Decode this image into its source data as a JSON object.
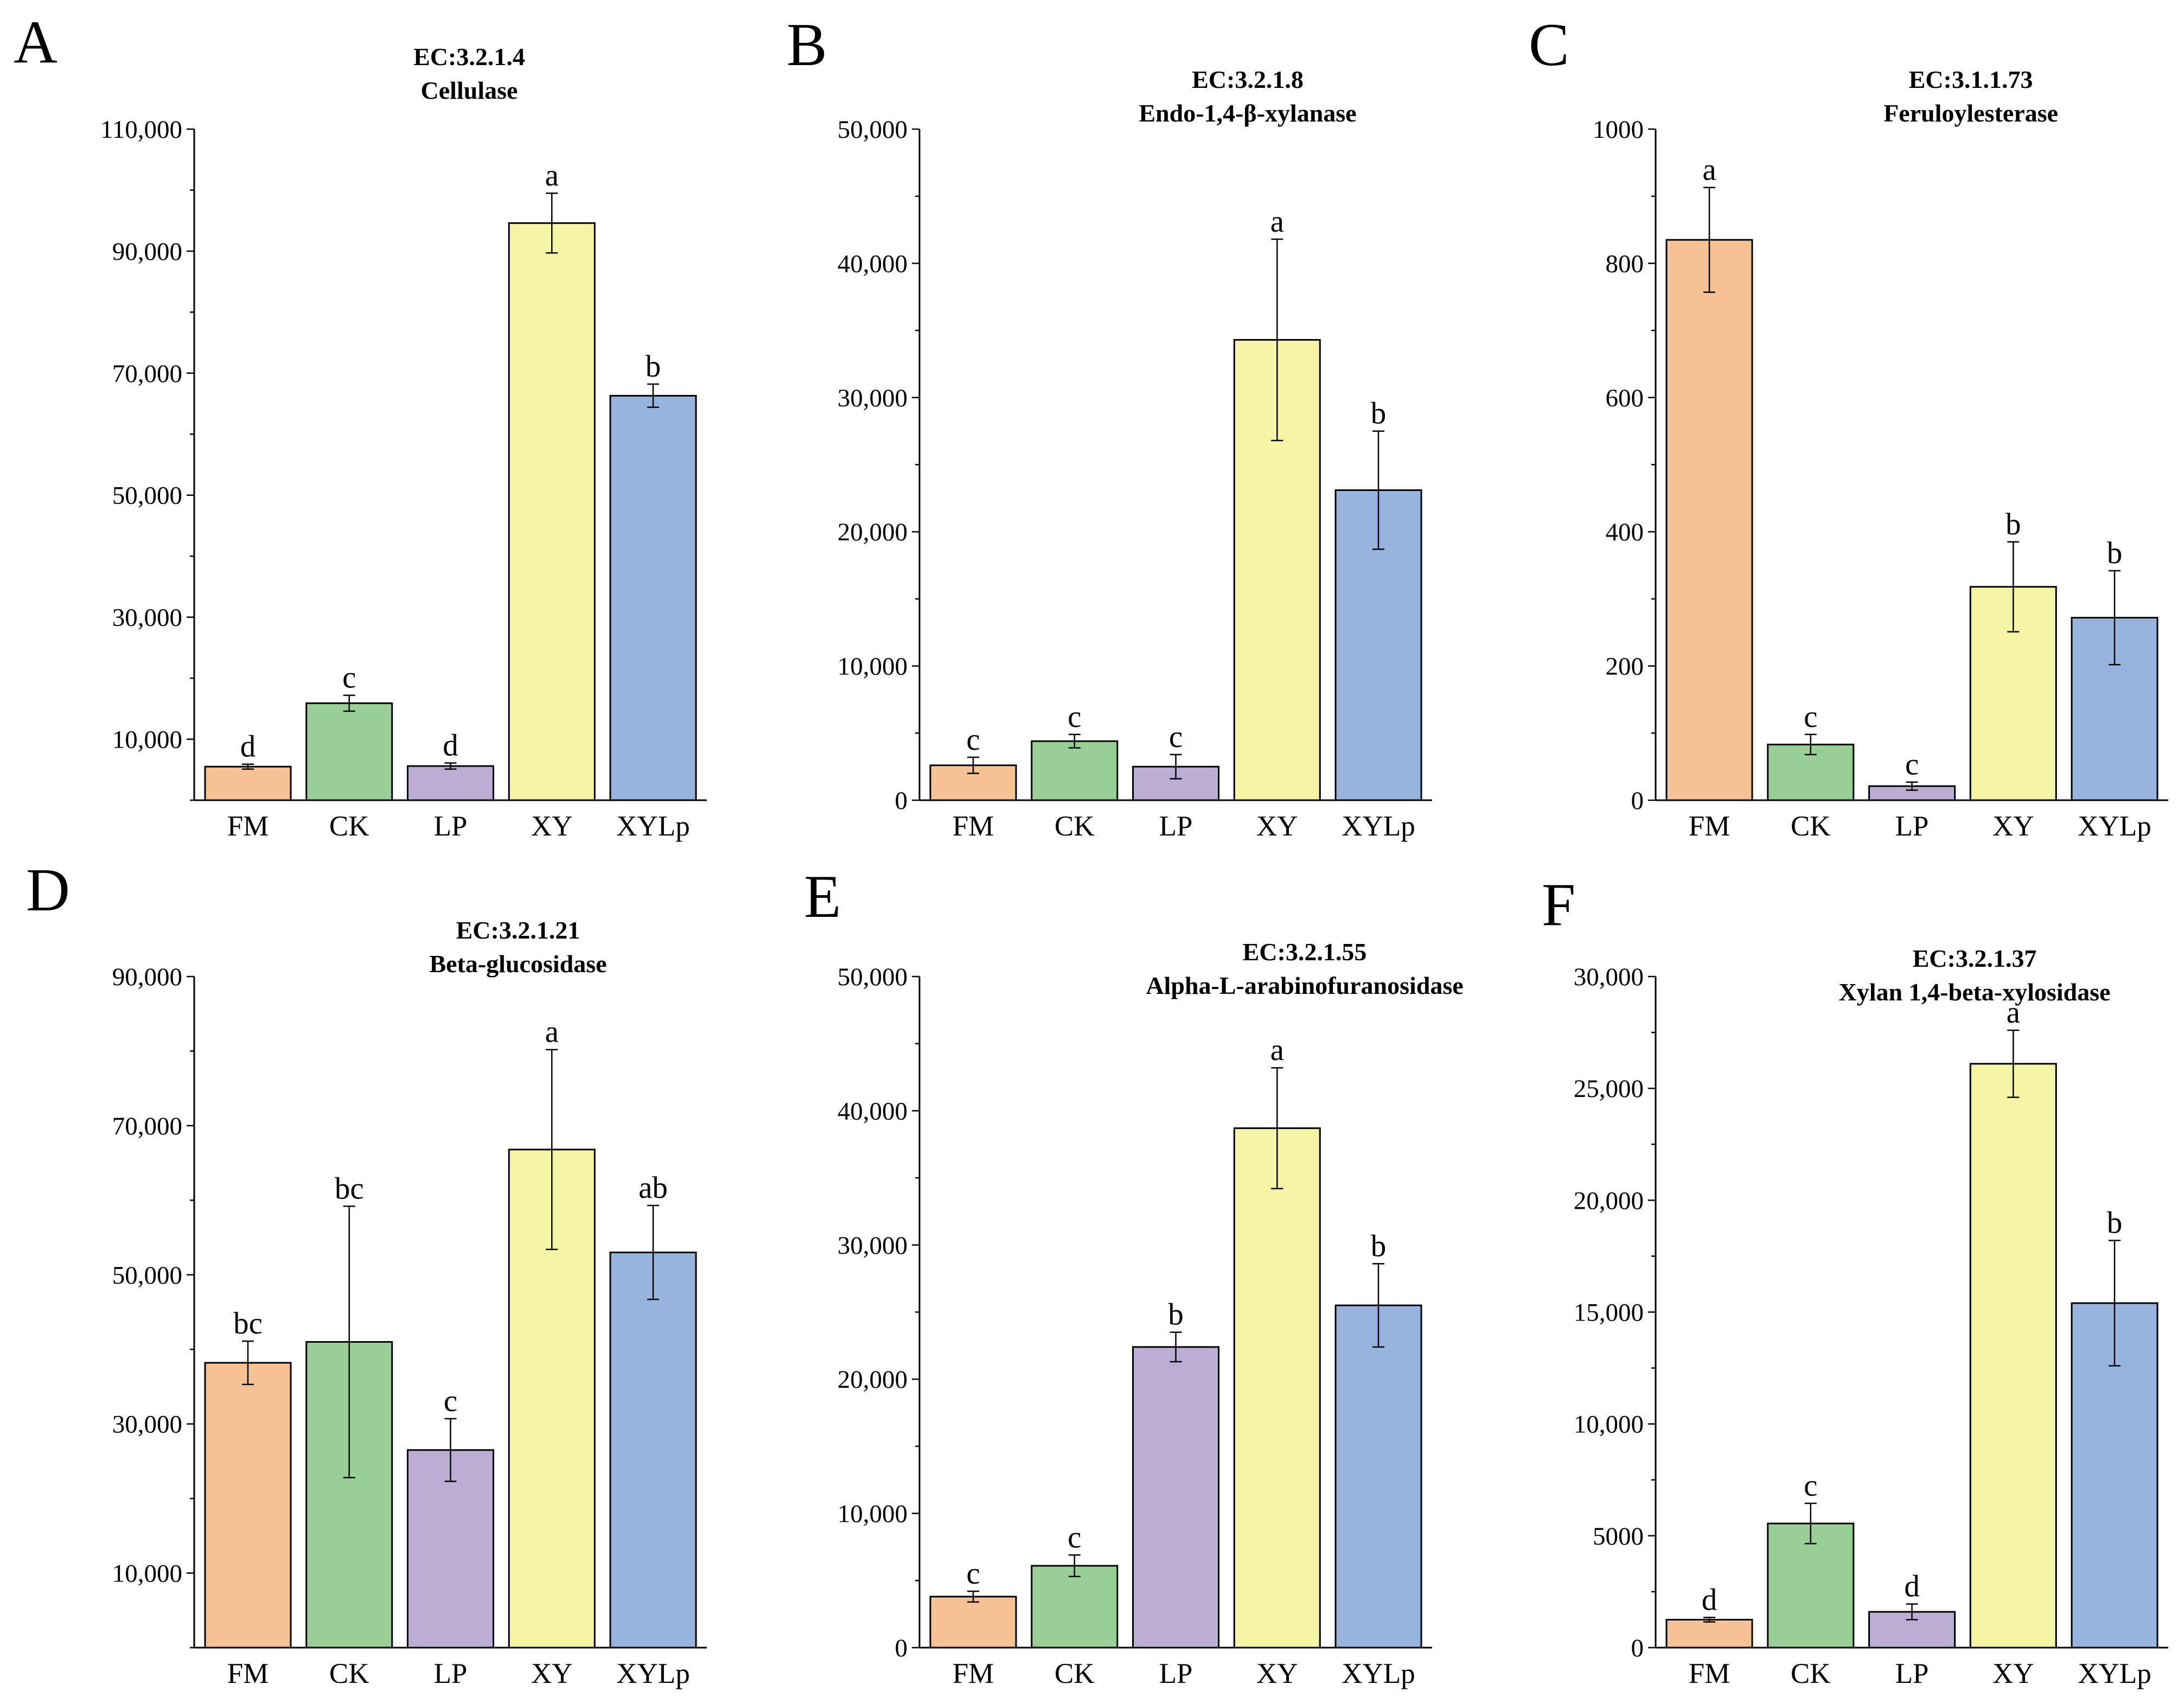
{
  "chart_data": [
    {
      "panel": "A",
      "type": "bar",
      "title": [
        "EC:3.2.1.4",
        "Cellulase"
      ],
      "xlabel": "",
      "ylabel": "",
      "categories": [
        "FM",
        "CK",
        "LP",
        "XY",
        "XYLp"
      ],
      "values": [
        5500,
        15900,
        5600,
        94600,
        66300
      ],
      "errors": [
        400,
        1300,
        500,
        4900,
        1900
      ],
      "labels": [
        "d",
        "c",
        "d",
        "a",
        "b"
      ],
      "ylim": [
        0,
        110000
      ],
      "yticks": [
        10000,
        30000,
        50000,
        70000,
        90000,
        110000
      ],
      "ytick_labels": [
        "10,000",
        "30,000",
        "50,000",
        "70,000",
        "90,000",
        "110,000"
      ],
      "ytick_minor": 10000
    },
    {
      "panel": "B",
      "type": "bar",
      "title": [
        "EC:3.2.1.8",
        "Endo-1,4-β-xylanase"
      ],
      "xlabel": "",
      "ylabel": "",
      "categories": [
        "FM",
        "CK",
        "LP",
        "XY",
        "XYLp"
      ],
      "values": [
        2600,
        4400,
        2500,
        34300,
        23100
      ],
      "errors": [
        600,
        500,
        900,
        7500,
        4400
      ],
      "labels": [
        "c",
        "c",
        "c",
        "a",
        "b"
      ],
      "ylim": [
        0,
        50000
      ],
      "yticks": [
        0,
        10000,
        20000,
        30000,
        40000,
        50000
      ],
      "ytick_labels": [
        "0",
        "10,000",
        "20,000",
        "30,000",
        "40,000",
        "50,000"
      ],
      "ytick_minor": 5000
    },
    {
      "panel": "C",
      "type": "bar",
      "title": [
        "EC:3.1.1.73",
        "Feruloylesterase"
      ],
      "xlabel": "",
      "ylabel": "",
      "categories": [
        "FM",
        "CK",
        "LP",
        "XY",
        "XYLp"
      ],
      "values": [
        835,
        83,
        21,
        318,
        272
      ],
      "errors": [
        78,
        15,
        6,
        67,
        70
      ],
      "labels": [
        "a",
        "c",
        "c",
        "b",
        "b"
      ],
      "ylim": [
        0,
        1000
      ],
      "yticks": [
        0,
        200,
        400,
        600,
        800,
        1000
      ],
      "ytick_labels": [
        "0",
        "200",
        "400",
        "600",
        "800",
        "1000"
      ],
      "ytick_minor": 100
    },
    {
      "panel": "D",
      "type": "bar",
      "title": [
        "EC:3.2.1.21",
        "Beta-glucosidase"
      ],
      "xlabel": "",
      "ylabel": "",
      "categories": [
        "FM",
        "CK",
        "LP",
        "XY",
        "XYLp"
      ],
      "values": [
        38200,
        41000,
        26500,
        66800,
        53000
      ],
      "errors": [
        2900,
        18200,
        4200,
        13400,
        6300
      ],
      "labels": [
        "bc",
        "bc",
        "c",
        "a",
        "ab"
      ],
      "ylim": [
        0,
        90000
      ],
      "yticks": [
        10000,
        30000,
        50000,
        70000,
        90000
      ],
      "ytick_labels": [
        "10,000",
        "30,000",
        "50,000",
        "70,000",
        "90,000"
      ],
      "ytick_minor": 10000
    },
    {
      "panel": "E",
      "type": "bar",
      "title": [
        "EC:3.2.1.55",
        "Alpha-L-arabinofuranosidase"
      ],
      "xlabel": "",
      "ylabel": "",
      "categories": [
        "FM",
        "CK",
        "LP",
        "XY",
        "XYLp"
      ],
      "values": [
        3800,
        6100,
        22400,
        38700,
        25500
      ],
      "errors": [
        400,
        800,
        1100,
        4500,
        3100
      ],
      "labels": [
        "c",
        "c",
        "b",
        "a",
        "b"
      ],
      "ylim": [
        0,
        50000
      ],
      "yticks": [
        0,
        10000,
        20000,
        30000,
        40000,
        50000
      ],
      "ytick_labels": [
        "0",
        "10,000",
        "20,000",
        "30,000",
        "40,000",
        "50,000"
      ],
      "ytick_minor": 5000
    },
    {
      "panel": "F",
      "type": "bar",
      "title": [
        "EC:3.2.1.37",
        "Xylan 1,4-beta-xylosidase"
      ],
      "xlabel": "",
      "ylabel": "",
      "categories": [
        "FM",
        "CK",
        "LP",
        "XY",
        "XYLp"
      ],
      "values": [
        1250,
        5550,
        1600,
        26100,
        15400
      ],
      "errors": [
        100,
        900,
        350,
        1500,
        2800
      ],
      "labels": [
        "d",
        "c",
        "d",
        "a",
        "b"
      ],
      "ylim": [
        0,
        30000
      ],
      "yticks": [
        0,
        5000,
        10000,
        15000,
        20000,
        25000,
        30000
      ],
      "ytick_labels": [
        "0",
        "5000",
        "10,000",
        "15,000",
        "20,000",
        "25,000",
        "30,000"
      ],
      "ytick_minor": 2500
    }
  ],
  "colors": {
    "FM": "#f6c293",
    "CK": "#98cf96",
    "LP": "#bcadd4",
    "XY": "#f4f4a4",
    "XYLp": "#97b4de",
    "axis": "#000000"
  }
}
